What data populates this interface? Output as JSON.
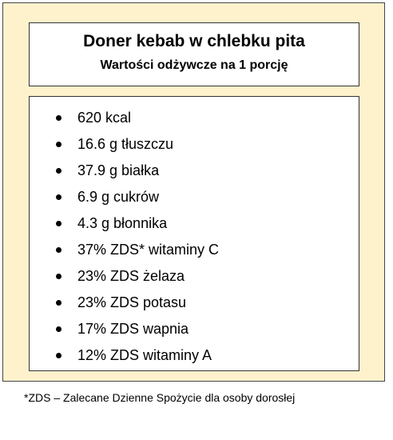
{
  "header": {
    "title": "Doner kebab w chlebku pita",
    "subtitle": "Wartości odżywcze na 1 porcję"
  },
  "nutrients": [
    "620 kcal",
    "16.6 g tłuszczu",
    "37.9 g białka",
    "6.9 g cukrów",
    "4.3 g błonnika",
    "37% ZDS* witaminy C",
    "23% ZDS żelaza",
    "23% ZDS potasu",
    "17% ZDS wapnia",
    "12% ZDS witaminy A"
  ],
  "footnote": "*ZDS – Zalecane Dzienne Spożycie dla osoby dorosłej",
  "colors": {
    "panel_background": "#fdf2cc",
    "box_background": "#ffffff",
    "text": "#000000"
  }
}
